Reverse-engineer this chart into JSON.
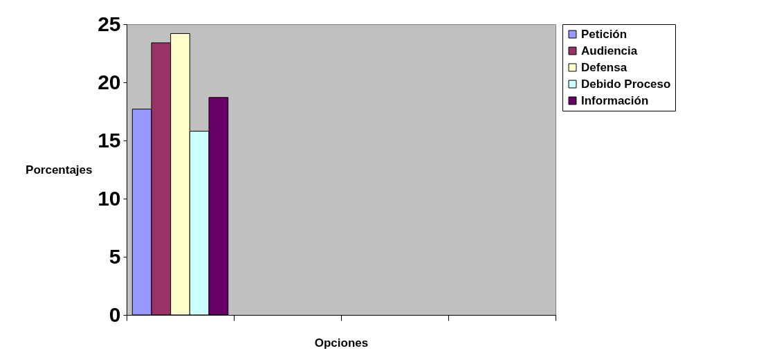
{
  "chart_data": {
    "type": "bar",
    "xlabel": "Opciones",
    "ylabel": "Porcentajes",
    "categories": [
      null,
      null,
      null,
      null
    ],
    "series": [
      {
        "name": "Petición",
        "color": "#9999ff",
        "values": [
          17.7,
          null,
          null,
          null
        ]
      },
      {
        "name": "Audiencia",
        "color": "#993366",
        "values": [
          23.4,
          null,
          null,
          null
        ]
      },
      {
        "name": "Defensa",
        "color": "#ffffcc",
        "values": [
          24.2,
          null,
          null,
          null
        ]
      },
      {
        "name": "Debido Proceso",
        "color": "#ccffff",
        "values": [
          15.8,
          null,
          null,
          null
        ]
      },
      {
        "name": "Información",
        "color": "#660066",
        "values": [
          18.7,
          null,
          null,
          null
        ]
      }
    ],
    "ylim": [
      0,
      25
    ],
    "yticks": [
      0,
      5,
      10,
      15,
      20,
      25
    ],
    "grid": false,
    "legend": "right"
  }
}
